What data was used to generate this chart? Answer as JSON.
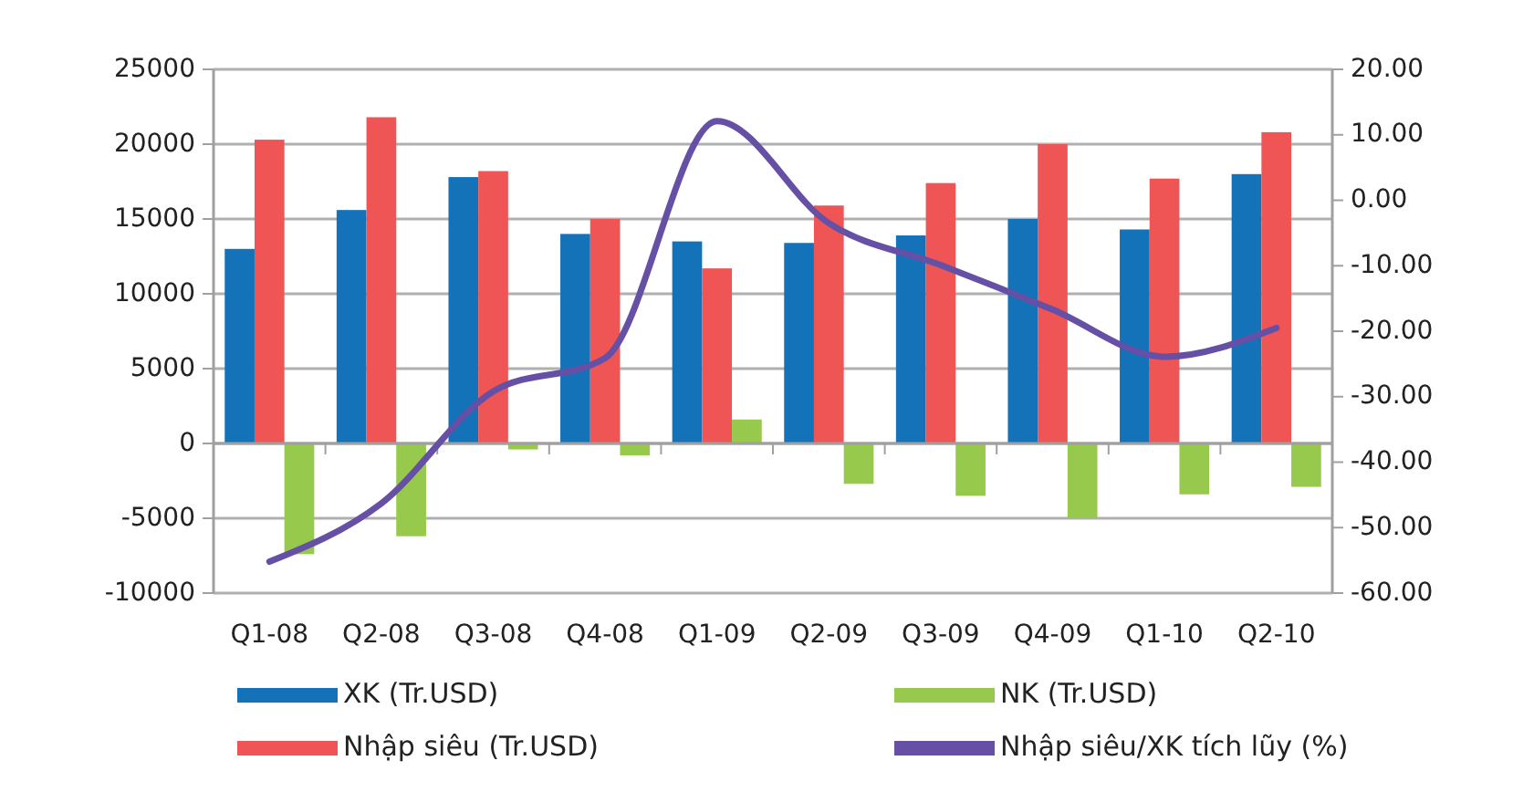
{
  "chart_data": {
    "type": "bar",
    "categories": [
      "Q1-08",
      "Q2-08",
      "Q3-08",
      "Q4-08",
      "Q1-09",
      "Q2-09",
      "Q3-09",
      "Q4-09",
      "Q1-10",
      "Q2-10"
    ],
    "series": [
      {
        "name": "XK (Tr.USD)",
        "color": "#1472b9",
        "values": [
          13000,
          15600,
          17800,
          14000,
          13500,
          13400,
          13900,
          15000,
          14300,
          18000
        ]
      },
      {
        "name": "Nhập siêu (Tr.USD)",
        "color": "#ef5555",
        "values": [
          20300,
          21800,
          18200,
          15000,
          11700,
          15900,
          17400,
          20000,
          17700,
          20800
        ]
      },
      {
        "name": "NK (Tr.USD)",
        "color": "#97c94d",
        "values": [
          -7400,
          -6200,
          -400,
          -800,
          1600,
          -2700,
          -3500,
          -5000,
          -3400,
          -2900
        ]
      },
      {
        "name": "Nhập siêu/XK tích lũy (%)",
        "type": "line",
        "axis": "y2",
        "color": "#6650a6",
        "values": [
          -55.2,
          -46.3,
          -29.2,
          -24.1,
          12.1,
          -3.5,
          -9.9,
          -16.7,
          -23.9,
          -19.5
        ]
      }
    ],
    "ylim": [
      -10000,
      25000
    ],
    "yticks": [
      -10000,
      -5000,
      0,
      5000,
      10000,
      15000,
      20000,
      25000
    ],
    "y2lim": [
      -60,
      20
    ],
    "y2ticks": [
      {
        "value": -60,
        "label": "-60.00"
      },
      {
        "value": -50,
        "label": "-50.00"
      },
      {
        "value": -40,
        "label": "-40.00"
      },
      {
        "value": -30,
        "label": "-30.00"
      },
      {
        "value": -20,
        "label": "-20.00"
      },
      {
        "value": -10,
        "label": "-10.00"
      },
      {
        "value": 0,
        "label": "0.00"
      },
      {
        "value": 10,
        "label": "10.00"
      },
      {
        "value": 20,
        "label": "20.00"
      }
    ],
    "grid": "y",
    "legend": "bottom",
    "marker": "none",
    "line_style": "solid"
  }
}
